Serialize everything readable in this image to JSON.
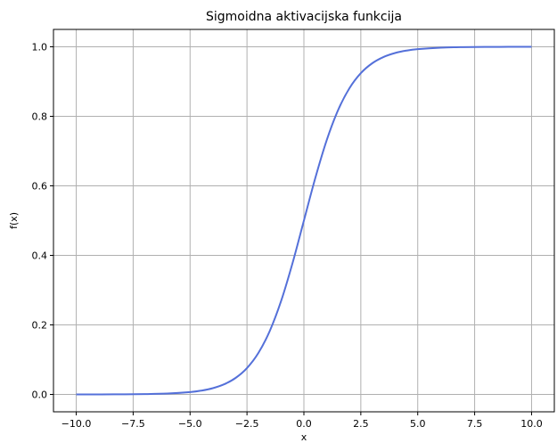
{
  "chart_data": {
    "type": "line",
    "title": "Sigmoidna aktivacijska funkcija",
    "xlabel": "x",
    "ylabel": "f(x)",
    "xlim": [
      -11,
      11
    ],
    "ylim": [
      -0.05,
      1.05
    ],
    "x_ticks": [
      -10.0,
      -7.5,
      -5.0,
      -2.5,
      0.0,
      2.5,
      5.0,
      7.5,
      10.0
    ],
    "x_tick_labels": [
      "−10.0",
      "−7.5",
      "−5.0",
      "−2.5",
      "0.0",
      "2.5",
      "5.0",
      "7.5",
      "10.0"
    ],
    "y_ticks": [
      0.0,
      0.2,
      0.4,
      0.6,
      0.8,
      1.0
    ],
    "y_tick_labels": [
      "0.0",
      "0.2",
      "0.4",
      "0.6",
      "0.8",
      "1.0"
    ],
    "grid": true,
    "series": [
      {
        "color": "#5470d9",
        "x": [
          -10,
          -9,
          -8,
          -7,
          -6,
          -5,
          -4.5,
          -4,
          -3.5,
          -3,
          -2.5,
          -2,
          -1.5,
          -1,
          -0.5,
          0,
          0.5,
          1,
          1.5,
          2,
          2.5,
          3,
          3.5,
          4,
          4.5,
          5,
          6,
          7,
          8,
          9,
          10
        ],
        "y": [
          5e-05,
          0.00012,
          0.00034,
          0.00091,
          0.00247,
          0.00669,
          0.01099,
          0.01799,
          0.02931,
          0.04743,
          0.07586,
          0.1192,
          0.18243,
          0.26894,
          0.37754,
          0.5,
          0.62246,
          0.73106,
          0.81757,
          0.8808,
          0.92414,
          0.95257,
          0.97069,
          0.98201,
          0.98901,
          0.99331,
          0.99753,
          0.99909,
          0.99966,
          0.99988,
          0.99995
        ]
      }
    ]
  }
}
